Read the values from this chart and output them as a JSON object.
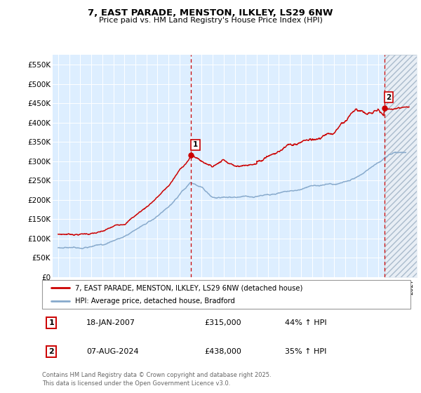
{
  "title": "7, EAST PARADE, MENSTON, ILKLEY, LS29 6NW",
  "subtitle": "Price paid vs. HM Land Registry's House Price Index (HPI)",
  "legend_line1": "7, EAST PARADE, MENSTON, ILKLEY, LS29 6NW (detached house)",
  "legend_line2": "HPI: Average price, detached house, Bradford",
  "annotation1_label": "1",
  "annotation1_date": "18-JAN-2007",
  "annotation1_price": "£315,000",
  "annotation1_hpi": "44% ↑ HPI",
  "annotation2_label": "2",
  "annotation2_date": "07-AUG-2024",
  "annotation2_price": "£438,000",
  "annotation2_hpi": "35% ↑ HPI",
  "footer": "Contains HM Land Registry data © Crown copyright and database right 2025.\nThis data is licensed under the Open Government Licence v3.0.",
  "red_color": "#cc0000",
  "blue_color": "#88aacc",
  "bg_color": "#ddeeff",
  "hatch_bg_color": "#e8eef5",
  "ylim": [
    0,
    575000
  ],
  "yticks": [
    0,
    50000,
    100000,
    150000,
    200000,
    250000,
    300000,
    350000,
    400000,
    450000,
    500000,
    550000
  ],
  "xlim_start": 1994.5,
  "xlim_end": 2027.5,
  "sale1_x": 2007.05,
  "sale1_y": 315000,
  "sale2_x": 2024.58,
  "sale2_y": 438000,
  "vline1_x": 2007.05,
  "vline2_x": 2024.58,
  "hatch_start": 2024.58
}
